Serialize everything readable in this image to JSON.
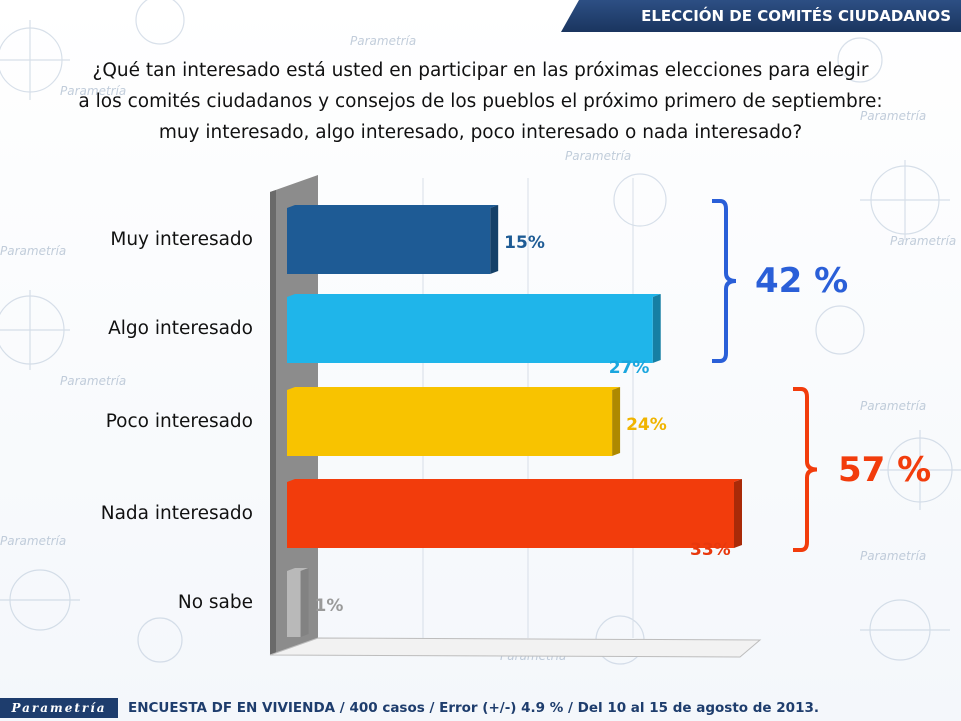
{
  "header": {
    "title": "ELECCIÓN DE COMITÉS CIUDADANOS"
  },
  "question": {
    "line1": "¿Qué tan interesado está usted en participar en las próximas elecciones para elegir",
    "line2": "a los comités ciudadanos y consejos de los pueblos el próximo primero de septiembre:",
    "line3": "muy interesado, algo interesado, poco interesado o nada interesado?"
  },
  "chart_data": {
    "type": "bar",
    "orientation": "horizontal",
    "categories": [
      "Muy interesado",
      "Algo interesado",
      "Poco interesado",
      "Nada interesado",
      "No sabe"
    ],
    "values": [
      15,
      27,
      24,
      33,
      1
    ],
    "value_labels": [
      "15%",
      "27%",
      "24%",
      "33%",
      "1%"
    ],
    "colors": [
      "#1e5b95",
      "#1fb5ea",
      "#f8c300",
      "#f23c0c",
      "#b9b9b9"
    ],
    "xlim": [
      0,
      33
    ],
    "groups": [
      {
        "label": "42 %",
        "color": "#2a5fd8",
        "members": [
          "Muy interesado",
          "Algo interesado"
        ]
      },
      {
        "label": "57 %",
        "color": "#f23c0c",
        "members": [
          "Poco interesado",
          "Nada interesado"
        ]
      }
    ]
  },
  "footer": {
    "logo_text": "Parametría",
    "source": "ENCUESTA DF EN VIVIENDA / 400 casos / Error (+/-) 4.9 % / Del 10 al 15 de agosto de 2013."
  },
  "background": {
    "watermark_text": "Parametría"
  }
}
